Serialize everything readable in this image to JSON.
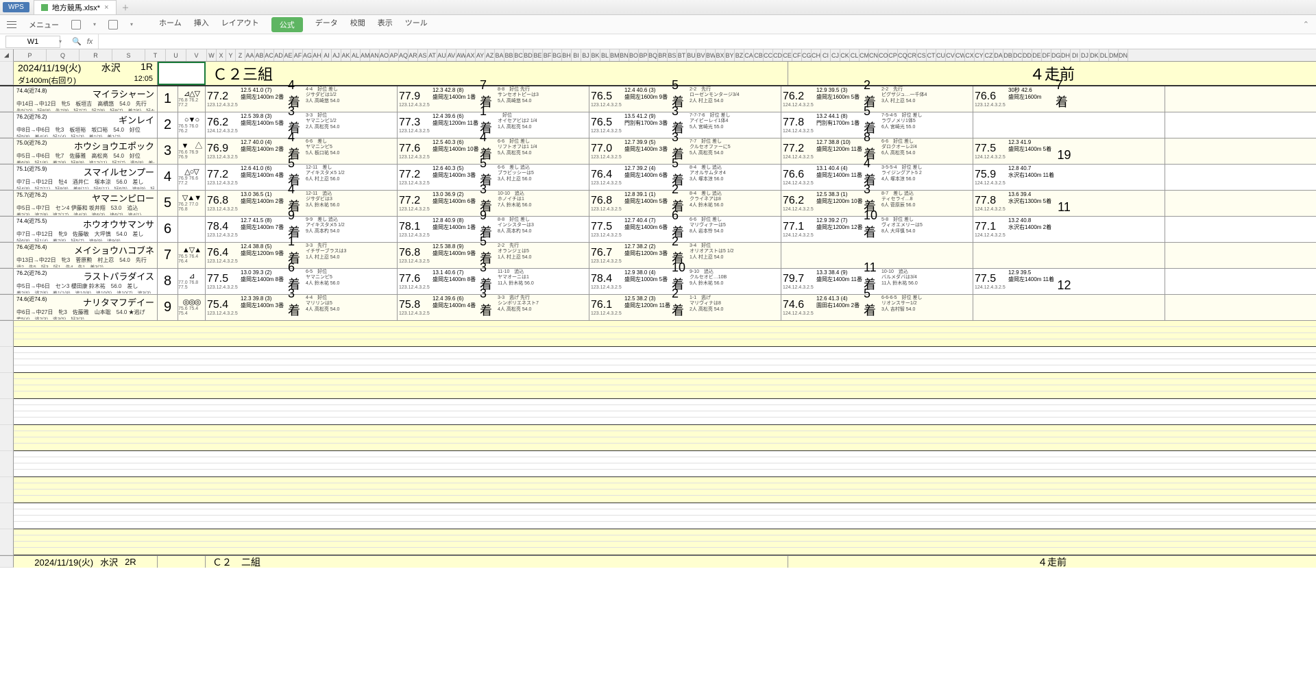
{
  "app": {
    "name": "WPS",
    "tab": "地方競馬.xlsx*",
    "menu_label": "メニュー"
  },
  "menus": [
    "ホーム",
    "挿入",
    "レイアウト",
    "公式",
    "データ",
    "校閲",
    "表示",
    "ツール"
  ],
  "active_menu": 3,
  "namebox": "W1",
  "fx": "fx",
  "cols": [
    "P",
    "Q",
    "R",
    "S",
    "T",
    "U",
    "V",
    "W",
    "X",
    "Y",
    "Z",
    "AA",
    "AB",
    "AC",
    "AD",
    "AE",
    "AF",
    "AG",
    "AH",
    "AI",
    "AJ",
    "AK",
    "AL",
    "AM",
    "AN",
    "AO",
    "AP",
    "AQ",
    "AR",
    "AS",
    "AT",
    "AU",
    "AV",
    "AW",
    "AX",
    "AY",
    "AZ",
    "BA",
    "BB",
    "BC",
    "BD",
    "BE",
    "BF",
    "BG",
    "BH",
    "BI",
    "BJ",
    "BK",
    "BL",
    "BM",
    "BN",
    "BO",
    "BP",
    "BQ",
    "BR",
    "BS",
    "BT",
    "BU",
    "BV",
    "BW",
    "BX",
    "BY",
    "BZ",
    "CA",
    "CB",
    "CC",
    "CD",
    "CE",
    "CF",
    "CG",
    "CH",
    "CI",
    "CJ",
    "CK",
    "CL",
    "CM",
    "CN",
    "CO",
    "CP",
    "CQ",
    "CR",
    "CS",
    "CT",
    "CU",
    "CV",
    "CW",
    "CX",
    "CY",
    "CZ",
    "DA",
    "DB",
    "DC",
    "DD",
    "DE",
    "DF",
    "DG",
    "DH",
    "DI",
    "DJ",
    "DK",
    "DL",
    "DM",
    "DN"
  ],
  "race": {
    "date": "2024/11/19(火)",
    "place": "水沢",
    "num": "1R",
    "course": "ダ1400m(右回り)",
    "time": "12:05",
    "title": "Ｃ２三組",
    "prev_title": "４走前"
  },
  "horses": [
    {
      "rating": "74.4(近74.8)",
      "name": "マイラシャーン",
      "line2": "中14日→中12日　牝5　板垣吉　高橋悠　54.0　先行",
      "line3": "先5(10)→好8(8)→先7(9)→好7(7)→好7(9)→好8(7)→差7(6)→好4(7)",
      "num": "1",
      "marks": "⊿△▽",
      "marks2": "76.8 76.2 77.2",
      "past": [
        {
          "t": "77.2",
          "ts": "123.12.4.3.2.5",
          "s1": "12.5 41.0 (7)",
          "s2": "盛岡左1400m 2番",
          "pl": "4着",
          "d1": "4-4",
          "d2": "ジサダビは1/2",
          "d3": "3人 高崎悠 54.0",
          "d4": "好位 差し"
        },
        {
          "t": "77.9",
          "ts": "123.12.4.3.2.5",
          "s1": "12.3 42.8 (8)",
          "s2": "盛岡左1400m 1番",
          "pl": "7着",
          "d1": "8-8",
          "d2": "サンセオトピーは3",
          "d3": "5人 高崎悠 54.0",
          "d4": "好位 先行"
        },
        {
          "t": "76.5",
          "ts": "123.12.4.3.2.5",
          "s1": "12.4 40.6 (3)",
          "s2": "盛岡左1600m 9番",
          "pl": "5着",
          "d1": "2-2",
          "d2": "ローゼンモンタージ3/4",
          "d3": "2人 村上忍 54.0",
          "d4": "先行"
        },
        {
          "t": "76.2",
          "ts": "124.12.4.3.2.5",
          "s1": "12.9 39.5 (3)",
          "s2": "盛岡左1600m 5番",
          "pl": "2着",
          "d1": "2-2",
          "d2": "ピグザジュ…一千体4",
          "d3": "3人 村上忍 54.0",
          "d4": "先行"
        },
        {
          "t": "76.6",
          "ts": "123.12.4.3.2.5",
          "s1": "30秒 42.6",
          "s2": "盛岡左1600m",
          "pl": "7着",
          "d1": "",
          "d2": "",
          "d3": "",
          "d4": ""
        }
      ]
    },
    {
      "rating": "76.2(近76.2)",
      "name": "ギンレイ",
      "line2": "中8日→中6日　牝3　板垣裕　坂口裕　54.0　好位",
      "line3": "好5(8)→差4(4)→好1(4)→好1(3)→差1(3)→差1(2)",
      "num": "2",
      "marks": "○▼○",
      "marks2": "76.5 76.0 76.2",
      "past": [
        {
          "t": "76.2",
          "ts": "124.12.4.3.2.5",
          "s1": "12.5 39.8 (3)",
          "s2": "盛岡左1400m 5番",
          "pl": "3着",
          "d1": "3-3",
          "d2": "ヤマニンビ1/2",
          "d3": "2人 高松亮 54.0",
          "d4": "好位"
        },
        {
          "t": "77.3",
          "ts": "123.12.4.3.2.5",
          "s1": "12.4 39.6 (6)",
          "s2": "盛岡左1200m 11番",
          "pl": "1着",
          "d1": "",
          "d2": "オイセアビは2 1/4",
          "d3": "1人 高松亮 54.0",
          "d4": "好位"
        },
        {
          "t": "76.5",
          "ts": "123.12.4.3.2.5",
          "s1": "13.5 41.2 (9)",
          "s2": "門別有1700m 3番",
          "pl": "3着",
          "d1": "7-7-7-6",
          "d2": "アイピーレイ1体4",
          "d3": "5人 宮崎光 55.0",
          "d4": "好位 差し"
        },
        {
          "t": "77.8",
          "ts": "124.12.4.3.2.5",
          "s1": "13.2 44.1 (8)",
          "s2": "門別有1700m 1番",
          "pl": "5着",
          "d1": "7-5-4-5",
          "d2": "ラヴノメリ1体5",
          "d3": "6人 宮崎光 55.0",
          "d4": "好位 差し"
        },
        {
          "t": "",
          "ts": "",
          "s1": "",
          "s2": "",
          "pl": "",
          "d1": "",
          "d2": "",
          "d3": "",
          "d4": ""
        }
      ]
    },
    {
      "rating": "75.0(近76.2)",
      "name": "ホウショウエポック",
      "line2": "中5日→中6日　牝7　佐藤雅　高松亮　54.0　好位",
      "line3": "差6(9)→好1(6)→差7(8)→好8(9)→追12(11)→好7(7)→逃5(8)→差4(4)",
      "num": "3",
      "marks": "▼　△",
      "marks2": "76.6 76.9 76.9",
      "past": [
        {
          "t": "76.9",
          "ts": "123.12.4.3.2.5",
          "s1": "12.7 40.0 (4)",
          "s2": "盛岡左1400m 2番",
          "pl": "4着",
          "d1": "6-6",
          "d2": "ヤマニンビ5",
          "d3": "5人 板口祐 54.0",
          "d4": "差し"
        },
        {
          "t": "77.6",
          "ts": "123.12.4.3.2.5",
          "s1": "12.5 40.3 (6)",
          "s2": "盛岡左1400m 10番",
          "pl": "4着",
          "d1": "6-6",
          "d2": "リフトオフは1 1/4",
          "d3": "5人 高松亮 54.0",
          "d4": "好位 差し"
        },
        {
          "t": "77.0",
          "ts": "123.12.4.3.2.5",
          "s1": "12.7 39.9 (5)",
          "s2": "盛岡左1400m 3番",
          "pl": "3着",
          "d1": "7-7",
          "d2": "クルセオファーに5",
          "d3": "5人 高松亮 54.0",
          "d4": "好位 差し"
        },
        {
          "t": "77.2",
          "ts": "124.12.4.3.2.5",
          "s1": "12.7 38.8 (10)",
          "s2": "盛岡左1200m 11番",
          "pl": "8着",
          "d1": "6-6",
          "d2": "ダロクオーレ2/4",
          "d3": "6人 高松亮 54.0",
          "d4": "好位 差し"
        },
        {
          "t": "77.5",
          "ts": "124.12.4.3.2.5",
          "s1": "12.3 41.9",
          "s2": "盛岡左1400m 5着",
          "pl": "19",
          "d1": "",
          "d2": "",
          "d3": "",
          "d4": ""
        }
      ]
    },
    {
      "rating": "75.1(近75.9)",
      "name": "スマイルセンプー",
      "line2": "中7日→中12日　牡4　酒井仁　塚本涼　56.0　差し",
      "line3": "好4(8)→好7(11)→好8(8)→差8(11)→好6(11)→好6(5)→追8(9)→好7(9)→差5(6)",
      "num": "4",
      "marks": "△○▽",
      "marks2": "76.9 76.6 77.2",
      "past": [
        {
          "t": "77.2",
          "ts": "123.12.4.3.2.5",
          "s1": "12.6 41.0 (6)",
          "s2": "盛岡左1400m 4番",
          "pl": "5着",
          "d1": "12-11",
          "d2": "アイキスタメ5 1/2",
          "d3": "6人 村上忍 56.0",
          "d4": "差し"
        },
        {
          "t": "77.2",
          "ts": "123.12.4.3.2.5",
          "s1": "12.6 40.3 (5)",
          "s2": "盛岡左1400m 3番",
          "pl": "5着",
          "d1": "6-6",
          "d2": "ブラビッシーは5",
          "d3": "3人 村上忍 56.0",
          "d4": "差し 追込"
        },
        {
          "t": "76.4",
          "ts": "123.12.4.3.2.5",
          "s1": "12.7 39.2 (4)",
          "s2": "盛岡左1400m 6番",
          "pl": "5着",
          "d1": "8-4",
          "d2": "アオルサムタオ4",
          "d3": "3人 塚本涼 56.0",
          "d4": "差し 追込"
        },
        {
          "t": "76.6",
          "ts": "124.12.4.3.2.5",
          "s1": "13.1 40.4 (4)",
          "s2": "盛岡左1400m 11番",
          "pl": "4着",
          "d1": "3-5-5-4",
          "d2": "ライジングアト5 2",
          "d3": "4人 塚本涼 56.0",
          "d4": "好位 差し"
        },
        {
          "t": "75.9",
          "ts": "124.12.4.3.2.5",
          "s1": "12.8 40.7",
          "s2": "水沢右1400m 11着",
          "pl": "",
          "d1": "",
          "d2": "",
          "d3": "",
          "d4": ""
        }
      ]
    },
    {
      "rating": "75.7(近76.2)",
      "name": "ヤマニンピロー",
      "line2": "中5日→中7日　セン4 伊藤和 坂井翔　53.0　追込",
      "line3": "差2(3)→追7(9)→追7(17)→追4(3)→追6(3)→追6(2)→追4(1)",
      "num": "5",
      "marks": "▽▲▼",
      "marks2": "76.2 77.0 76.8",
      "past": [
        {
          "t": "76.8",
          "ts": "123.12.4.3.2.5",
          "s1": "13.0 36.5 (1)",
          "s2": "盛岡左1400m 2番",
          "pl": "4着",
          "d1": "12-11",
          "d2": "ジサダビは3",
          "d3": "3人 鈴木祐 56.0",
          "d4": "追込"
        },
        {
          "t": "77.2",
          "ts": "123.12.4.3.2.5",
          "s1": "13.0 36.9 (2)",
          "s2": "盛岡左1400m 6番",
          "pl": "3着",
          "d1": "10-10",
          "d2": "ホノイチは1",
          "d3": "7人 鈴木祐 56.0",
          "d4": "追込"
        },
        {
          "t": "76.8",
          "ts": "123.12.4.3.2.5",
          "s1": "12.8 39.1 (1)",
          "s2": "盛岡左1400m 5番",
          "pl": "2着",
          "d1": "8-4",
          "d2": "クライネアは8",
          "d3": "4人 鈴木祐 56.0",
          "d4": "差し 追込"
        },
        {
          "t": "76.2",
          "ts": "124.12.4.3.2.5",
          "s1": "12.5 38.3 (1)",
          "s2": "盛岡左1200m 10番",
          "pl": "3着",
          "d1": "8-7",
          "d2": "ティセライ…8",
          "d3": "6人 菅原辰 56.0",
          "d4": "差し 追込"
        },
        {
          "t": "77.8",
          "ts": "124.12.4.3.2.5",
          "s1": "13.6 39.4",
          "s2": "水沢右1300m 5着",
          "pl": "11",
          "d1": "",
          "d2": "",
          "d3": "",
          "d4": ""
        }
      ]
    },
    {
      "rating": "74.4(近75.5)",
      "name": "ホウオウサマンサ",
      "line2": "中7日→中12日　牝9　佐藤敏　大坪慎　54.0　差し",
      "line3": "好6(8)→好1(4)→差7(6)→好5(7)→追9(9)→追9(8)",
      "num": "6",
      "marks": "",
      "marks2": "",
      "past": [
        {
          "t": "78.4",
          "ts": "123.12.4.3.2.5",
          "s1": "12.7 41.5 (8)",
          "s2": "盛岡左1400m 7番",
          "pl": "9着",
          "d1": "9-9",
          "d2": "アイキスタメ5 1/2",
          "d3": "9人 高本杓 54.0",
          "d4": "差し 追込"
        },
        {
          "t": "78.1",
          "ts": "123.12.4.3.2.5",
          "s1": "12.8 40.9 (8)",
          "s2": "盛岡左1400m 1番",
          "pl": "9着",
          "d1": "8-8",
          "d2": "インシスターは3",
          "d3": "8人 高本杓 54.0",
          "d4": "好位 差し"
        },
        {
          "t": "77.5",
          "ts": "123.12.4.3.2.5",
          "s1": "12.7 40.4 (7)",
          "s2": "盛岡左1400m 6番",
          "pl": "6着",
          "d1": "6-6",
          "d2": "マリヴィナーは5",
          "d3": "8人 岩本怜 54.0",
          "d4": "好位 差し"
        },
        {
          "t": "77.1",
          "ts": "124.12.4.3.2.5",
          "s1": "12.9 39.2 (7)",
          "s2": "盛岡左1200m 12番",
          "pl": "10着",
          "d1": "5-8",
          "d2": "ヴィオエメリーは5",
          "d3": "8人 大坪慎 54.0",
          "d4": "好位 差し"
        },
        {
          "t": "77.1",
          "ts": "124.12.4.3.2.5",
          "s1": "13.2 40.8",
          "s2": "水沢右1400m 2着",
          "pl": "",
          "d1": "",
          "d2": "",
          "d3": "",
          "d4": ""
        }
      ]
    },
    {
      "rating": "76.4(近76.4)",
      "name": "メイショウハコブネ",
      "line2": "中13日→中22日　牝3　菅原勲　村上忍　54.0　先行",
      "line3": "過2…先5→好3→好1→先4→先1→差3(2)",
      "num": "7",
      "marks": "▲▽▲",
      "marks2": "76.5 76.4 76.4",
      "past": [
        {
          "t": "76.4",
          "ts": "123.12.4.3.2.5",
          "s1": "12.4 38.8 (5)",
          "s2": "盛岡左1200m 9番",
          "pl": "1着",
          "d1": "3-3",
          "d2": "イチザーブラスは3",
          "d3": "1人 村上忍 54.0",
          "d4": "先行"
        },
        {
          "t": "76.8",
          "ts": "123.12.4.3.2.5",
          "s1": "12.5 38.8 (9)",
          "s2": "盛岡左1400m 9番",
          "pl": "5着",
          "d1": "2-2",
          "d2": "オランジェは5",
          "d3": "1人 村上忍 54.0",
          "d4": "先行"
        },
        {
          "t": "76.7",
          "ts": "123.12.4.3.2.5",
          "s1": "12.7 38.2 (2)",
          "s2": "盛岡右1200m 3番",
          "pl": "2着",
          "d1": "3-4",
          "d2": "オリオアストは5 1/2",
          "d3": "1人 村上忍 54.0",
          "d4": "好位"
        },
        {
          "t": "",
          "ts": "",
          "s1": "",
          "s2": "",
          "pl": "",
          "d1": "",
          "d2": "",
          "d3": "",
          "d4": ""
        },
        {
          "t": "",
          "ts": "",
          "s1": "",
          "s2": "",
          "pl": "",
          "d1": "",
          "d2": "",
          "d3": "",
          "d4": ""
        }
      ]
    },
    {
      "rating": "76.2(近76.2)",
      "name": "ラストパラダイス",
      "line2": "中5日→中6日　セン3 櫻田康 鈴木祐　56.0　差し",
      "line3": "差2(6)→逃7(6)→差1(1(8)→追10(8)→追10(5)→追10(7)→追3(3)",
      "num": "8",
      "marks": "⊿",
      "marks2": "77.0 76.8 77.5",
      "past": [
        {
          "t": "77.5",
          "ts": "123.12.4.3.2.5",
          "s1": "13.0 39.3 (2)",
          "s2": "盛岡左1400m 8番",
          "pl": "6着",
          "d1": "6-5",
          "d2": "ヤマニンビ5",
          "d3": "4人 鈴木祐 56.0",
          "d4": "好位"
        },
        {
          "t": "77.6",
          "ts": "123.12.4.3.2.5",
          "s1": "13.1 40.6 (7)",
          "s2": "盛岡左1400m 8番",
          "pl": "3着",
          "d1": "11-10",
          "d2": "ヤマオーニは1",
          "d3": "11人 鈴木祐 56.0",
          "d4": "追込"
        },
        {
          "t": "78.4",
          "ts": "123.12.4.3.2.5",
          "s1": "12.9 38.0 (4)",
          "s2": "盛岡左1000m 5番",
          "pl": "10着",
          "d1": "9-10",
          "d2": "クルセオビ…10B",
          "d3": "9人 鈴木祐 56.0",
          "d4": "追込"
        },
        {
          "t": "79.7",
          "ts": "124.12.4.3.2.5",
          "s1": "13.3 38.4 (9)",
          "s2": "盛岡左1400m 11番",
          "pl": "11着",
          "d1": "10-10",
          "d2": "バルメダバは3/4",
          "d3": "11人 鈴木祐 56.0",
          "d4": "追込"
        },
        {
          "t": "77.5",
          "ts": "124.12.4.3.2.5",
          "s1": "12.9 39.5",
          "s2": "盛岡左1400m 11着",
          "pl": "12",
          "d1": "",
          "d2": "",
          "d3": "",
          "d4": ""
        }
      ]
    },
    {
      "rating": "74.6(近74.6)",
      "name": "ナリタマフデイー",
      "line2": "中6日→中27日　牝3　佐藤雅　山本聡　54.0 ★逃げ",
      "line3": "若5(4)→逃2(3)→逃3(5)→好3(3)",
      "num": "9",
      "marks": "◎◎◎",
      "marks2": "75.6 75.4 75.4",
      "past": [
        {
          "t": "75.4",
          "ts": "123.12.4.3.2.5",
          "s1": "12.3 39.8 (3)",
          "s2": "盛岡左1400m 3番",
          "pl": "3着",
          "d1": "4-4",
          "d2": "マリリンは5",
          "d3": "4人 高松亮 54.0",
          "d4": "好位"
        },
        {
          "t": "75.8",
          "ts": "123.12.4.3.2.5",
          "s1": "12.4 39.6 (6)",
          "s2": "盛岡左1400m 4番",
          "pl": "3着",
          "d1": "3-3",
          "d2": "シンボリエネスト7",
          "d3": "4人 高松亮 54.0",
          "d4": "逃げ 先行"
        },
        {
          "t": "76.1",
          "ts": "123.12.4.3.2.5",
          "s1": "12.5 38.2 (3)",
          "s2": "盛岡左1200m 11番",
          "pl": "2着",
          "d1": "1-1",
          "d2": "マリヴィナは8",
          "d3": "2人 高松亮 54.0",
          "d4": "逃げ"
        },
        {
          "t": "74.6",
          "ts": "124.12.4.3.2.5",
          "s1": "12.6 41.3 (4)",
          "s2": "園田右1400m 2番",
          "pl": "5着",
          "d1": "6-6-6-5",
          "d2": "リオンスサー1/2",
          "d3": "3人 吉村智 54.0",
          "d4": "好位 差し"
        },
        {
          "t": "",
          "ts": "",
          "s1": "",
          "s2": "",
          "pl": "",
          "d1": "",
          "d2": "",
          "d3": "",
          "d4": ""
        }
      ]
    }
  ],
  "footer": {
    "date": "2024/11/19(火)",
    "place": "水沢",
    "num": "2R",
    "title": "Ｃ２　二組",
    "prev": "４走前"
  }
}
